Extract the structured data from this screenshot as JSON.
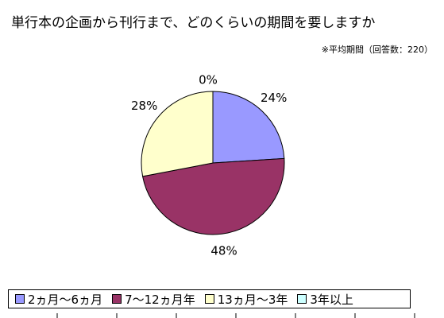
{
  "chart_data": {
    "type": "pie",
    "title": "単行本の企画から刊行まで、どのくらいの期間を要しますか",
    "subtitle": "※平均期間（回答数：220）",
    "categories": [
      "2ヵ月〜6ヵ月",
      "7〜12ヵ月年",
      "13ヵ月〜3年",
      "3年以上"
    ],
    "values": [
      24,
      48,
      28,
      0
    ],
    "labels": [
      "24%",
      "48%",
      "28%",
      "0%"
    ],
    "colors": [
      "#9999FF",
      "#993366",
      "#FFFFCC",
      "#CCFFFF"
    ],
    "legend_position": "bottom"
  }
}
